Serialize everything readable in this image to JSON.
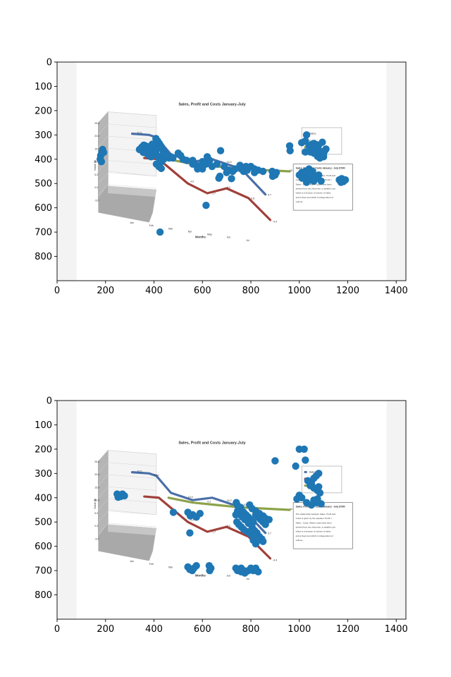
{
  "chart_data": [
    {
      "type": "scatter",
      "title": "",
      "xlabel": "",
      "ylabel": "",
      "xlim": [
        0,
        1440
      ],
      "ylim": [
        900,
        0
      ],
      "x_ticks": [
        "0",
        "200",
        "400",
        "600",
        "800",
        "1000",
        "1200",
        "1400"
      ],
      "y_ticks": [
        "0",
        "100",
        "200",
        "300",
        "400",
        "500",
        "600",
        "700",
        "800"
      ],
      "grid": false,
      "background_image": {
        "title": "Sales, Profit and Costs January-July",
        "ylabel": "Value $k",
        "xlabel": "Months",
        "months": [
          "Jan",
          "Feb",
          "Mar",
          "Apr",
          "May",
          "Jun",
          "Jul"
        ],
        "z_ticks": [
          "25.0",
          "20.0",
          "15.0",
          "10.0",
          "5.0",
          "0.0",
          "-5.0"
        ],
        "legend": [
          "Sales",
          "Costs",
          "Profit"
        ],
        "value_labels": [
          "21.5",
          "20.0",
          "10.9",
          "15.0",
          "9.2",
          "10.6",
          "5.7",
          "4.9",
          "1.7",
          "6.0",
          "0.8",
          "-4.4",
          "10.1"
        ],
        "note_title": "Sales, Profit and Costs January - July $'000",
        "note_text": "The relationship between Sales, Profit and Costs is given by the equation: Profit = Sales - Costs. Where costs have been derived from two elements: a variable cost which is a function of volume of sales, and a fixed cost which is independent of volume."
      },
      "series": [
        {
          "color": "#1f77b4",
          "points": [
            [
              185,
              370
            ],
            [
              180,
              385
            ],
            [
              178,
              400
            ],
            [
              183,
              410
            ],
            [
              188,
              360
            ],
            [
              192,
              372
            ],
            [
              340,
              360
            ],
            [
              350,
              350
            ],
            [
              358,
              342
            ],
            [
              365,
              345
            ],
            [
              372,
              355
            ],
            [
              380,
              350
            ],
            [
              388,
              345
            ],
            [
              395,
              360
            ],
            [
              402,
              372
            ],
            [
              410,
              380
            ],
            [
              418,
              392
            ],
            [
              425,
              402
            ],
            [
              432,
              410
            ],
            [
              440,
              400
            ],
            [
              447,
              392
            ],
            [
              455,
              385
            ],
            [
              462,
              395
            ],
            [
              470,
              390
            ],
            [
              478,
              395
            ],
            [
              365,
              368
            ],
            [
              372,
              378
            ],
            [
              380,
              385
            ],
            [
              388,
              390
            ],
            [
              396,
              380
            ],
            [
              404,
              368
            ],
            [
              412,
              358
            ],
            [
              420,
              340
            ],
            [
              428,
              350
            ],
            [
              436,
              362
            ],
            [
              444,
              372
            ],
            [
              452,
              382
            ],
            [
              408,
              315
            ],
            [
              415,
              325
            ],
            [
              422,
              335
            ],
            [
              428,
              345
            ],
            [
              434,
              355
            ],
            [
              438,
              380
            ],
            [
              410,
              420
            ],
            [
              420,
              430
            ],
            [
              430,
              438
            ],
            [
              393,
              338
            ],
            [
              377,
              352
            ],
            [
              363,
              360
            ],
            [
              356,
              372
            ],
            [
              500,
              375
            ],
            [
              510,
              385
            ],
            [
              520,
              400
            ],
            [
              535,
              405
            ],
            [
              560,
              420
            ],
            [
              575,
              425
            ],
            [
              590,
              432
            ],
            [
              600,
              410
            ],
            [
              615,
              420
            ],
            [
              620,
              390
            ],
            [
              630,
              405
            ],
            [
              640,
              430
            ],
            [
              580,
              440
            ],
            [
              600,
              440
            ],
            [
              675,
              365
            ],
            [
              660,
              420
            ],
            [
              690,
              430
            ],
            [
              700,
              455
            ],
            [
              710,
              445
            ],
            [
              725,
              450
            ],
            [
              735,
              440
            ],
            [
              672,
              470
            ],
            [
              668,
              478
            ],
            [
              720,
              480
            ],
            [
              560,
              405
            ],
            [
              615,
              590
            ],
            [
              425,
              700
            ],
            [
              755,
              425
            ],
            [
              770,
              435
            ],
            [
              785,
              445
            ],
            [
              800,
              430
            ],
            [
              815,
              440
            ],
            [
              830,
              445
            ],
            [
              850,
              450
            ],
            [
              770,
              450
            ],
            [
              815,
              455
            ],
            [
              760,
              440
            ],
            [
              780,
              430
            ],
            [
              888,
              450
            ],
            [
              895,
              460
            ],
            [
              900,
              465
            ],
            [
              890,
              470
            ],
            [
              905,
              455
            ],
            [
              960,
              345
            ],
            [
              962,
              365
            ],
            [
              1010,
              332
            ],
            [
              1025,
              325
            ],
            [
              1030,
              300
            ],
            [
              1040,
              345
            ],
            [
              1055,
              355
            ],
            [
              1060,
              335
            ],
            [
              1070,
              340
            ],
            [
              1080,
              362
            ],
            [
              1090,
              372
            ],
            [
              1100,
              380
            ],
            [
              1110,
              358
            ],
            [
              1095,
              330
            ],
            [
              1045,
              370
            ],
            [
              1060,
              375
            ],
            [
              1025,
              370
            ],
            [
              1075,
              388
            ],
            [
              1085,
              395
            ],
            [
              1105,
              365
            ],
            [
              1100,
              390
            ],
            [
              1080,
              342
            ],
            [
              1065,
              355
            ],
            [
              1050,
              340
            ],
            [
              1000,
              465
            ],
            [
              1010,
              455
            ],
            [
              1020,
              460
            ],
            [
              1035,
              470
            ],
            [
              1050,
              480
            ],
            [
              1060,
              490
            ],
            [
              1070,
              475
            ],
            [
              1080,
              465
            ],
            [
              1045,
              485
            ],
            [
              1030,
              495
            ],
            [
              1025,
              450
            ],
            [
              1040,
              440
            ],
            [
              1055,
              450
            ],
            [
              1065,
              470
            ],
            [
              1090,
              490
            ],
            [
              1012,
              478
            ],
            [
              1042,
              460
            ],
            [
              1165,
              485
            ],
            [
              1175,
              480
            ],
            [
              1182,
              492
            ],
            [
              1190,
              485
            ],
            [
              1172,
              495
            ]
          ]
        }
      ]
    },
    {
      "type": "scatter",
      "title": "",
      "xlabel": "",
      "ylabel": "",
      "xlim": [
        0,
        1440
      ],
      "ylim": [
        900,
        0
      ],
      "x_ticks": [
        "0",
        "200",
        "400",
        "600",
        "800",
        "1000",
        "1200",
        "1400"
      ],
      "y_ticks": [
        "0",
        "100",
        "200",
        "300",
        "400",
        "500",
        "600",
        "700",
        "800"
      ],
      "grid": false,
      "background_image": {
        "title": "Sales, Profit and Costs January-July",
        "ylabel": "Value $k",
        "xlabel": "Months",
        "months": [
          "Jan",
          "Feb",
          "Mar",
          "Apr",
          "May",
          "Jun",
          "Jul"
        ],
        "z_ticks": [
          "25.0",
          "20.0",
          "15.0",
          "10.0",
          "5.0",
          "0.0",
          "-5.0"
        ],
        "legend": [
          "Sales",
          "Costs",
          "Profit"
        ],
        "value_labels": [
          "21.5",
          "20.0",
          "10.9",
          "15.0",
          "9.2",
          "10.6",
          "5.7",
          "4.9",
          "1.7",
          "6.0",
          "0.8",
          "-4.4",
          "10.1"
        ],
        "note_title": "Sales, Profit and Costs January - July $'000",
        "note_text": "The relationship between Sales, Profit and Costs is given by the equation: Profit = Sales - Costs. Where costs have been derived from two elements: a variable cost which is a function of volume of sales, and a fixed cost which is independent of volume."
      },
      "series": [
        {
          "color": "#1f77b4",
          "points": [
            [
              248,
              385
            ],
            [
              256,
              390
            ],
            [
              262,
              395
            ],
            [
              270,
              385
            ],
            [
              278,
              392
            ],
            [
              252,
              398
            ],
            [
              480,
              460
            ],
            [
              540,
              460
            ],
            [
              550,
              475
            ],
            [
              560,
              470
            ],
            [
              575,
              480
            ],
            [
              590,
              465
            ],
            [
              548,
              545
            ],
            [
              740,
              420
            ],
            [
              745,
              432
            ],
            [
              752,
              445
            ],
            [
              760,
              452
            ],
            [
              770,
              460
            ],
            [
              780,
              470
            ],
            [
              790,
              480
            ],
            [
              800,
              490
            ],
            [
              810,
              500
            ],
            [
              820,
              470
            ],
            [
              830,
              480
            ],
            [
              840,
              490
            ],
            [
              850,
              500
            ],
            [
              860,
              510
            ],
            [
              755,
              470
            ],
            [
              765,
              480
            ],
            [
              775,
              490
            ],
            [
              790,
              505
            ],
            [
              805,
              520
            ],
            [
              815,
              535
            ],
            [
              825,
              545
            ],
            [
              835,
              560
            ],
            [
              845,
              570
            ],
            [
              850,
              580
            ],
            [
              815,
              560
            ],
            [
              800,
              550
            ],
            [
              785,
              540
            ],
            [
              770,
              530
            ],
            [
              760,
              520
            ],
            [
              750,
              510
            ],
            [
              742,
              500
            ],
            [
              738,
              470
            ],
            [
              745,
              455
            ],
            [
              758,
              440
            ],
            [
              795,
              430
            ],
            [
              805,
              445
            ],
            [
              820,
              455
            ],
            [
              835,
              465
            ],
            [
              850,
              475
            ],
            [
              860,
              485
            ],
            [
              875,
              490
            ],
            [
              810,
              575
            ],
            [
              820,
              590
            ],
            [
              830,
              575
            ],
            [
              540,
              685
            ],
            [
              548,
              695
            ],
            [
              558,
              700
            ],
            [
              565,
              690
            ],
            [
              575,
              680
            ],
            [
              628,
              680
            ],
            [
              635,
              690
            ],
            [
              630,
              700
            ],
            [
              760,
              690
            ],
            [
              770,
              700
            ],
            [
              780,
              705
            ],
            [
              790,
              700
            ],
            [
              800,
              690
            ],
            [
              810,
              700
            ],
            [
              820,
              690
            ],
            [
              775,
              710
            ],
            [
              760,
              705
            ],
            [
              745,
              700
            ],
            [
              738,
              690
            ],
            [
              830,
              705
            ],
            [
              900,
              248
            ],
            [
              985,
              270
            ],
            [
              1000,
              200
            ],
            [
              1020,
              200
            ],
            [
              1025,
              245
            ],
            [
              1035,
              330
            ],
            [
              1050,
              340
            ],
            [
              1060,
              320
            ],
            [
              1070,
              310
            ],
            [
              1080,
              300
            ],
            [
              1045,
              350
            ],
            [
              1060,
              360
            ],
            [
              1075,
              370
            ],
            [
              1085,
              380
            ],
            [
              1080,
              355
            ],
            [
              990,
              405
            ],
            [
              1000,
              390
            ],
            [
              1010,
              400
            ],
            [
              1030,
              420
            ],
            [
              1050,
              430
            ],
            [
              1070,
              420
            ],
            [
              1090,
              425
            ],
            [
              1075,
              405
            ],
            [
              1060,
              410
            ]
          ]
        }
      ]
    }
  ]
}
